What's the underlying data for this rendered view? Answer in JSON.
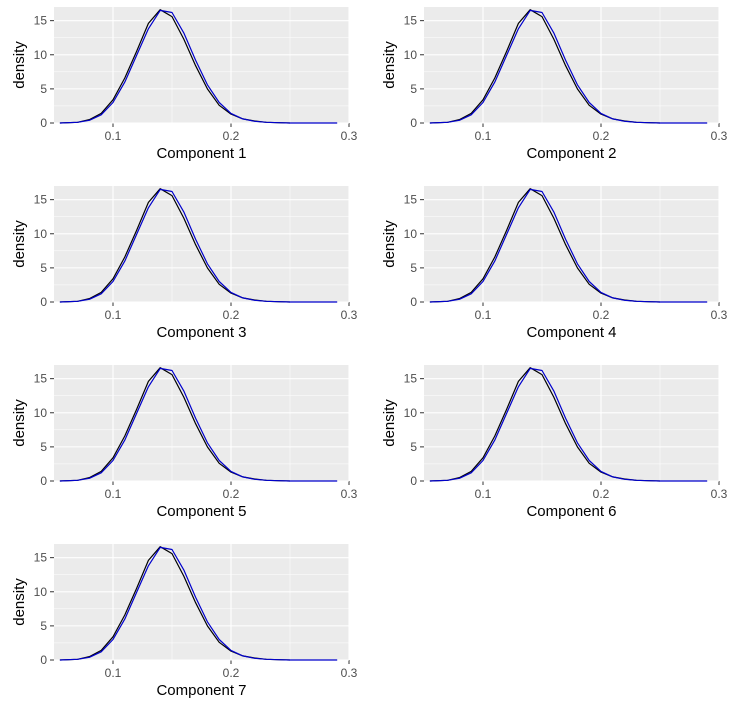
{
  "chart_data": [
    {
      "type": "line",
      "xlabel": "Component 1",
      "ylabel": "density",
      "xlim": [
        0.05,
        0.3
      ],
      "ylim": [
        0,
        17
      ],
      "x_ticks": [
        0.1,
        0.2,
        0.3
      ],
      "x_tick_labels": [
        "0.1",
        "0.2",
        "0.3"
      ],
      "y_ticks": [
        0,
        5,
        10,
        15
      ],
      "y_tick_labels": [
        "0",
        "5",
        "10",
        "15"
      ],
      "grid": true,
      "series": [
        {
          "color": "#000000",
          "x": [
            0.055,
            0.07,
            0.08,
            0.09,
            0.1,
            0.11,
            0.12,
            0.13,
            0.14,
            0.15,
            0.16,
            0.17,
            0.18,
            0.19,
            0.2,
            0.21,
            0.22,
            0.23,
            0.24,
            0.25
          ],
          "y": [
            0.0,
            0.1,
            0.5,
            1.4,
            3.4,
            6.6,
            10.5,
            14.6,
            16.6,
            15.6,
            12.3,
            8.4,
            5.0,
            2.6,
            1.3,
            0.6,
            0.3,
            0.1,
            0.05,
            0.0
          ]
        },
        {
          "color": "#0000cc",
          "x": [
            0.055,
            0.07,
            0.08,
            0.09,
            0.1,
            0.11,
            0.12,
            0.13,
            0.14,
            0.15,
            0.16,
            0.17,
            0.18,
            0.19,
            0.2,
            0.21,
            0.22,
            0.23,
            0.24,
            0.25,
            0.29
          ],
          "y": [
            0.0,
            0.1,
            0.4,
            1.2,
            3.0,
            6.0,
            9.9,
            13.8,
            16.5,
            16.2,
            13.2,
            9.2,
            5.6,
            3.0,
            1.4,
            0.6,
            0.25,
            0.1,
            0.04,
            0.0,
            0.0
          ]
        }
      ]
    },
    {
      "type": "line",
      "xlabel": "Component 2",
      "ylabel": "density",
      "xlim": [
        0.05,
        0.3
      ],
      "ylim": [
        0,
        17
      ],
      "x_ticks": [
        0.1,
        0.2,
        0.3
      ],
      "x_tick_labels": [
        "0.1",
        "0.2",
        "0.3"
      ],
      "y_ticks": [
        0,
        5,
        10,
        15
      ],
      "y_tick_labels": [
        "0",
        "5",
        "10",
        "15"
      ],
      "grid": true,
      "series": [
        {
          "color": "#000000",
          "x": [
            0.055,
            0.07,
            0.08,
            0.09,
            0.1,
            0.11,
            0.12,
            0.13,
            0.14,
            0.15,
            0.16,
            0.17,
            0.18,
            0.19,
            0.2,
            0.21,
            0.22,
            0.23,
            0.24,
            0.25
          ],
          "y": [
            0.0,
            0.1,
            0.5,
            1.4,
            3.4,
            6.6,
            10.5,
            14.6,
            16.6,
            15.6,
            12.3,
            8.4,
            5.0,
            2.6,
            1.3,
            0.6,
            0.3,
            0.1,
            0.05,
            0.0
          ]
        },
        {
          "color": "#0000cc",
          "x": [
            0.055,
            0.07,
            0.08,
            0.09,
            0.1,
            0.11,
            0.12,
            0.13,
            0.14,
            0.15,
            0.16,
            0.17,
            0.18,
            0.19,
            0.2,
            0.21,
            0.22,
            0.23,
            0.24,
            0.25,
            0.29
          ],
          "y": [
            0.0,
            0.1,
            0.4,
            1.2,
            3.0,
            6.0,
            9.9,
            13.8,
            16.5,
            16.2,
            13.2,
            9.2,
            5.6,
            3.0,
            1.4,
            0.6,
            0.25,
            0.1,
            0.04,
            0.0,
            0.0
          ]
        }
      ]
    },
    {
      "type": "line",
      "xlabel": "Component 3",
      "ylabel": "density",
      "xlim": [
        0.05,
        0.3
      ],
      "ylim": [
        0,
        17
      ],
      "x_ticks": [
        0.1,
        0.2,
        0.3
      ],
      "x_tick_labels": [
        "0.1",
        "0.2",
        "0.3"
      ],
      "y_ticks": [
        0,
        5,
        10,
        15
      ],
      "y_tick_labels": [
        "0",
        "5",
        "10",
        "15"
      ],
      "grid": true,
      "series": [
        {
          "color": "#000000",
          "x": [
            0.055,
            0.07,
            0.08,
            0.09,
            0.1,
            0.11,
            0.12,
            0.13,
            0.14,
            0.15,
            0.16,
            0.17,
            0.18,
            0.19,
            0.2,
            0.21,
            0.22,
            0.23,
            0.24,
            0.25
          ],
          "y": [
            0.0,
            0.1,
            0.5,
            1.4,
            3.4,
            6.6,
            10.5,
            14.6,
            16.6,
            15.6,
            12.3,
            8.4,
            5.0,
            2.6,
            1.3,
            0.6,
            0.3,
            0.1,
            0.05,
            0.0
          ]
        },
        {
          "color": "#0000cc",
          "x": [
            0.055,
            0.07,
            0.08,
            0.09,
            0.1,
            0.11,
            0.12,
            0.13,
            0.14,
            0.15,
            0.16,
            0.17,
            0.18,
            0.19,
            0.2,
            0.21,
            0.22,
            0.23,
            0.24,
            0.25,
            0.29
          ],
          "y": [
            0.0,
            0.1,
            0.4,
            1.2,
            3.0,
            6.0,
            9.9,
            13.8,
            16.5,
            16.2,
            13.2,
            9.2,
            5.6,
            3.0,
            1.4,
            0.6,
            0.25,
            0.1,
            0.04,
            0.0,
            0.0
          ]
        }
      ]
    },
    {
      "type": "line",
      "xlabel": "Component 4",
      "ylabel": "density",
      "xlim": [
        0.05,
        0.3
      ],
      "ylim": [
        0,
        17
      ],
      "x_ticks": [
        0.1,
        0.2,
        0.3
      ],
      "x_tick_labels": [
        "0.1",
        "0.2",
        "0.3"
      ],
      "y_ticks": [
        0,
        5,
        10,
        15
      ],
      "y_tick_labels": [
        "0",
        "5",
        "10",
        "15"
      ],
      "grid": true,
      "series": [
        {
          "color": "#000000",
          "x": [
            0.055,
            0.07,
            0.08,
            0.09,
            0.1,
            0.11,
            0.12,
            0.13,
            0.14,
            0.15,
            0.16,
            0.17,
            0.18,
            0.19,
            0.2,
            0.21,
            0.22,
            0.23,
            0.24,
            0.25
          ],
          "y": [
            0.0,
            0.1,
            0.5,
            1.4,
            3.4,
            6.6,
            10.5,
            14.6,
            16.6,
            15.6,
            12.3,
            8.4,
            5.0,
            2.6,
            1.3,
            0.6,
            0.3,
            0.1,
            0.05,
            0.0
          ]
        },
        {
          "color": "#0000cc",
          "x": [
            0.055,
            0.07,
            0.08,
            0.09,
            0.1,
            0.11,
            0.12,
            0.13,
            0.14,
            0.15,
            0.16,
            0.17,
            0.18,
            0.19,
            0.2,
            0.21,
            0.22,
            0.23,
            0.24,
            0.25,
            0.29
          ],
          "y": [
            0.0,
            0.1,
            0.4,
            1.2,
            3.0,
            6.0,
            9.9,
            13.8,
            16.5,
            16.2,
            13.2,
            9.2,
            5.6,
            3.0,
            1.4,
            0.6,
            0.25,
            0.1,
            0.04,
            0.0,
            0.0
          ]
        }
      ]
    },
    {
      "type": "line",
      "xlabel": "Component 5",
      "ylabel": "density",
      "xlim": [
        0.05,
        0.3
      ],
      "ylim": [
        0,
        17
      ],
      "x_ticks": [
        0.1,
        0.2,
        0.3
      ],
      "x_tick_labels": [
        "0.1",
        "0.2",
        "0.3"
      ],
      "y_ticks": [
        0,
        5,
        10,
        15
      ],
      "y_tick_labels": [
        "0",
        "5",
        "10",
        "15"
      ],
      "grid": true,
      "series": [
        {
          "color": "#000000",
          "x": [
            0.055,
            0.07,
            0.08,
            0.09,
            0.1,
            0.11,
            0.12,
            0.13,
            0.14,
            0.15,
            0.16,
            0.17,
            0.18,
            0.19,
            0.2,
            0.21,
            0.22,
            0.23,
            0.24,
            0.25
          ],
          "y": [
            0.0,
            0.1,
            0.5,
            1.4,
            3.4,
            6.6,
            10.5,
            14.6,
            16.6,
            15.6,
            12.3,
            8.4,
            5.0,
            2.6,
            1.3,
            0.6,
            0.3,
            0.1,
            0.05,
            0.0
          ]
        },
        {
          "color": "#0000cc",
          "x": [
            0.055,
            0.07,
            0.08,
            0.09,
            0.1,
            0.11,
            0.12,
            0.13,
            0.14,
            0.15,
            0.16,
            0.17,
            0.18,
            0.19,
            0.2,
            0.21,
            0.22,
            0.23,
            0.24,
            0.25,
            0.29
          ],
          "y": [
            0.0,
            0.1,
            0.4,
            1.2,
            3.0,
            6.0,
            9.9,
            13.8,
            16.5,
            16.2,
            13.2,
            9.2,
            5.6,
            3.0,
            1.4,
            0.6,
            0.25,
            0.1,
            0.04,
            0.0,
            0.0
          ]
        }
      ]
    },
    {
      "type": "line",
      "xlabel": "Component 6",
      "ylabel": "density",
      "xlim": [
        0.05,
        0.3
      ],
      "ylim": [
        0,
        17
      ],
      "x_ticks": [
        0.1,
        0.2,
        0.3
      ],
      "x_tick_labels": [
        "0.1",
        "0.2",
        "0.3"
      ],
      "y_ticks": [
        0,
        5,
        10,
        15
      ],
      "y_tick_labels": [
        "0",
        "5",
        "10",
        "15"
      ],
      "grid": true,
      "series": [
        {
          "color": "#000000",
          "x": [
            0.055,
            0.07,
            0.08,
            0.09,
            0.1,
            0.11,
            0.12,
            0.13,
            0.14,
            0.15,
            0.16,
            0.17,
            0.18,
            0.19,
            0.2,
            0.21,
            0.22,
            0.23,
            0.24,
            0.25
          ],
          "y": [
            0.0,
            0.1,
            0.5,
            1.4,
            3.4,
            6.6,
            10.5,
            14.6,
            16.6,
            15.6,
            12.3,
            8.4,
            5.0,
            2.6,
            1.3,
            0.6,
            0.3,
            0.1,
            0.05,
            0.0
          ]
        },
        {
          "color": "#0000cc",
          "x": [
            0.055,
            0.07,
            0.08,
            0.09,
            0.1,
            0.11,
            0.12,
            0.13,
            0.14,
            0.15,
            0.16,
            0.17,
            0.18,
            0.19,
            0.2,
            0.21,
            0.22,
            0.23,
            0.24,
            0.25,
            0.29
          ],
          "y": [
            0.0,
            0.1,
            0.4,
            1.2,
            3.0,
            6.0,
            9.9,
            13.8,
            16.5,
            16.2,
            13.2,
            9.2,
            5.6,
            3.0,
            1.4,
            0.6,
            0.25,
            0.1,
            0.04,
            0.0,
            0.0
          ]
        }
      ]
    },
    {
      "type": "line",
      "xlabel": "Component 7",
      "ylabel": "density",
      "xlim": [
        0.05,
        0.3
      ],
      "ylim": [
        0,
        17
      ],
      "x_ticks": [
        0.1,
        0.2,
        0.3
      ],
      "x_tick_labels": [
        "0.1",
        "0.2",
        "0.3"
      ],
      "y_ticks": [
        0,
        5,
        10,
        15
      ],
      "y_tick_labels": [
        "0",
        "5",
        "10",
        "15"
      ],
      "grid": true,
      "series": [
        {
          "color": "#000000",
          "x": [
            0.055,
            0.07,
            0.08,
            0.09,
            0.1,
            0.11,
            0.12,
            0.13,
            0.14,
            0.15,
            0.16,
            0.17,
            0.18,
            0.19,
            0.2,
            0.21,
            0.22,
            0.23,
            0.24,
            0.25
          ],
          "y": [
            0.0,
            0.1,
            0.5,
            1.4,
            3.4,
            6.6,
            10.5,
            14.6,
            16.6,
            15.6,
            12.3,
            8.4,
            5.0,
            2.6,
            1.3,
            0.6,
            0.3,
            0.1,
            0.05,
            0.0
          ]
        },
        {
          "color": "#0000cc",
          "x": [
            0.055,
            0.07,
            0.08,
            0.09,
            0.1,
            0.11,
            0.12,
            0.13,
            0.14,
            0.15,
            0.16,
            0.17,
            0.18,
            0.19,
            0.2,
            0.21,
            0.22,
            0.23,
            0.24,
            0.25,
            0.29
          ],
          "y": [
            0.0,
            0.1,
            0.4,
            1.2,
            3.0,
            6.0,
            9.9,
            13.8,
            16.5,
            16.2,
            13.2,
            9.2,
            5.6,
            3.0,
            1.4,
            0.6,
            0.25,
            0.1,
            0.04,
            0.0,
            0.0
          ]
        }
      ]
    }
  ]
}
